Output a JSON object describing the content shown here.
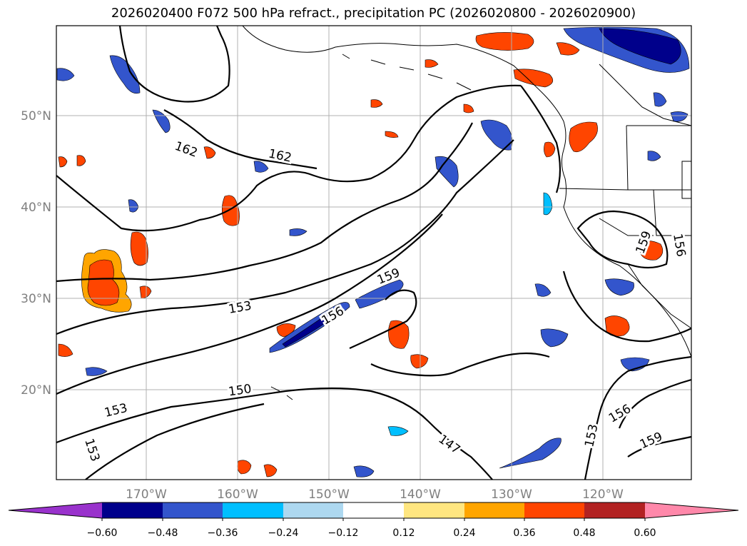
{
  "title": "2026020400 F072 500 hPa refract., precipitation PC (2026020800 - 2026020900)",
  "map": {
    "lat_ticks": [
      "50°N",
      "40°N",
      "30°N",
      "20°N"
    ],
    "lon_ticks": [
      "170°W",
      "160°W",
      "150°W",
      "140°W",
      "130°W",
      "120°W"
    ],
    "contour_labels": [
      "162",
      "162",
      "159",
      "156",
      "153",
      "153",
      "150",
      "153",
      "147",
      "153",
      "156",
      "159",
      "159",
      "156"
    ]
  },
  "colorbar": {
    "ticks": [
      "−0.60",
      "−0.48",
      "−0.36",
      "−0.24",
      "−0.12",
      "0.12",
      "0.24",
      "0.36",
      "0.48",
      "0.60"
    ],
    "colors": [
      "#9932cc",
      "#00008b",
      "#3355cc",
      "#00bfff",
      "#add8f0",
      "#ffffff",
      "#ffe680",
      "#ffa500",
      "#ff4500",
      "#b22222",
      "#ff88aa"
    ]
  }
}
